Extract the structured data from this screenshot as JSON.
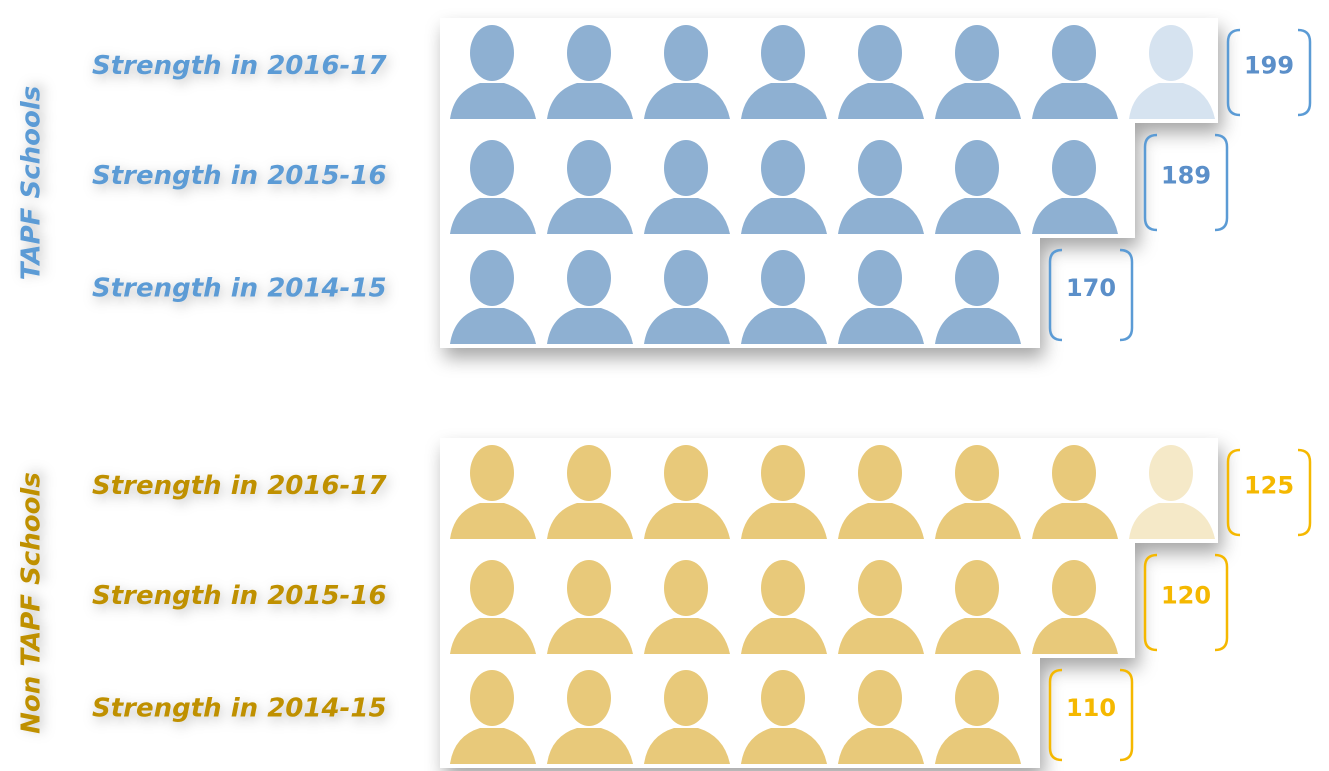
{
  "groups": [
    {
      "label": "TAPF Schools",
      "rows": [
        {
          "label": "Strength in 2016-17",
          "value": 199
        },
        {
          "label": "Strength in 2015-16",
          "value": 189
        },
        {
          "label": "Strength in 2014-15",
          "value": 170
        }
      ]
    },
    {
      "label": "Non TAPF Schools",
      "rows": [
        {
          "label": "Strength in 2016-17",
          "value": 125
        },
        {
          "label": "Strength in 2015-16",
          "value": 120
        },
        {
          "label": "Strength in 2014-15",
          "value": 110
        }
      ]
    }
  ]
}
